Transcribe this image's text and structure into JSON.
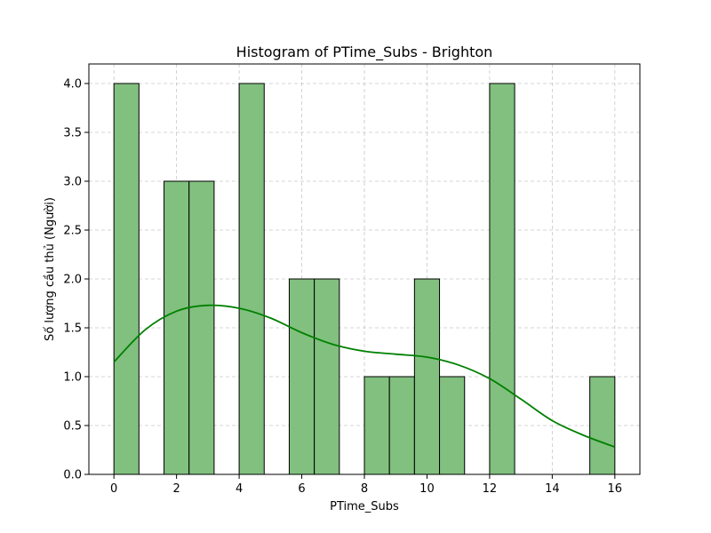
{
  "chart_data": {
    "type": "bar",
    "title": "Histogram of PTime_Subs - Brighton",
    "xlabel": "PTime_Subs",
    "ylabel": "Số lượng cầu thủ (Người)",
    "xlim": [
      -0.8,
      16.8
    ],
    "ylim": [
      0,
      4.2
    ],
    "xticks": [
      0,
      2,
      4,
      6,
      8,
      10,
      12,
      14,
      16
    ],
    "yticks": [
      0.0,
      0.5,
      1.0,
      1.5,
      2.0,
      2.5,
      3.0,
      3.5,
      4.0
    ],
    "xtick_labels": [
      "0",
      "2",
      "4",
      "6",
      "8",
      "10",
      "12",
      "14",
      "16"
    ],
    "ytick_labels": [
      "0.0",
      "0.5",
      "1.0",
      "1.5",
      "2.0",
      "2.5",
      "3.0",
      "3.5",
      "4.0"
    ],
    "bin_edges": [
      0,
      0.8,
      1.6,
      2.4,
      3.2,
      4.0,
      4.8,
      5.6,
      6.4,
      7.2,
      8.0,
      8.8,
      9.6,
      10.4,
      11.2,
      12.0,
      12.8,
      13.6,
      14.4,
      15.2,
      16.0
    ],
    "values": [
      4,
      0,
      3,
      3,
      0,
      4,
      0,
      2,
      2,
      0,
      1,
      1,
      2,
      1,
      0,
      4,
      0,
      0,
      0,
      1
    ],
    "bar_color": "#81c07f",
    "kde_color": "#008000",
    "kde": {
      "x": [
        0,
        1,
        2,
        3,
        4,
        5,
        6,
        7,
        8,
        9,
        10,
        11,
        12,
        13,
        14,
        15,
        16
      ],
      "y": [
        1.15,
        1.48,
        1.67,
        1.73,
        1.7,
        1.6,
        1.45,
        1.33,
        1.26,
        1.23,
        1.2,
        1.12,
        0.98,
        0.77,
        0.55,
        0.4,
        0.28
      ]
    },
    "grid": true
  }
}
